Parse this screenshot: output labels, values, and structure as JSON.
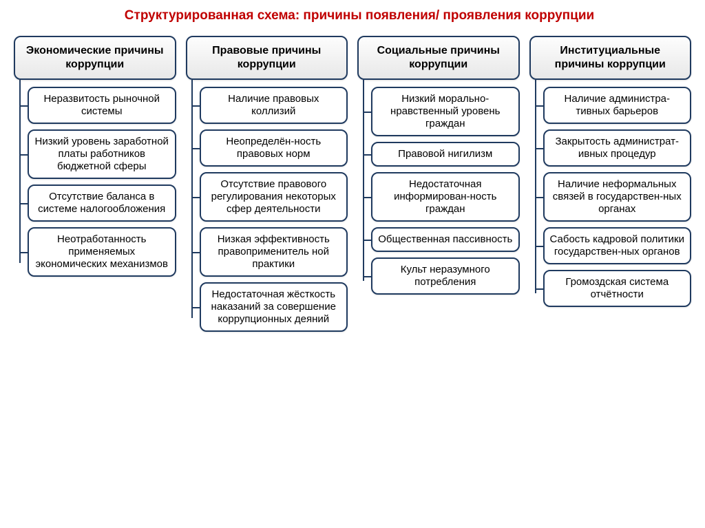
{
  "title": "Структурированная схема: причины появления/ проявления  коррупции",
  "styling": {
    "title_color": "#c00000",
    "title_fontsize": 19,
    "title_fontweight": "bold",
    "header_bg_gradient_from": "#fdfdfd",
    "header_bg_gradient_to": "#e8e8e8",
    "header_fontsize": 16,
    "header_fontweight": "bold",
    "item_bg": "#ffffff",
    "item_fontsize": 15,
    "border_color": "#1f3a5f",
    "border_width": 2,
    "border_radius": 10,
    "connector_color": "#1f3a5f",
    "background_color": "#ffffff",
    "column_gap": 14,
    "item_gap": 8
  },
  "columns": [
    {
      "header": "Экономические причины коррупции",
      "items": [
        "Неразвитость рыночной системы",
        "Низкий уровень заработной платы работников бюджетной сферы",
        "Отсутствие баланса в системе налогообложения",
        "Неотработанность применяемых экономических механизмов"
      ]
    },
    {
      "header": "Правовые причины коррупции",
      "items": [
        "Наличие правовых коллизий",
        "Неопределён-ность правовых норм",
        "Отсутствие правового регулирования некоторых сфер деятельности",
        "Низкая эффективность правоприменитель ной практики",
        "Недостаточная жёсткость наказаний за совершение коррупционных деяний"
      ]
    },
    {
      "header": "Социальные причины коррупции",
      "items": [
        "Низкий морально-нравственный уровень граждан",
        "Правовой нигилизм",
        "Недостаточная информирован-ность граждан",
        "Общественная пассивность",
        "Культ неразумного потребления"
      ]
    },
    {
      "header": "Институциальные причины коррупции",
      "items": [
        "Наличие администра-тивных барьеров",
        "Закрытость администрат-ивных процедур",
        "Наличие неформальных связей в государствен-ных органах",
        "Сабость кадровой политики государствен-ных органов",
        "Громоздская система отчётности"
      ]
    }
  ]
}
